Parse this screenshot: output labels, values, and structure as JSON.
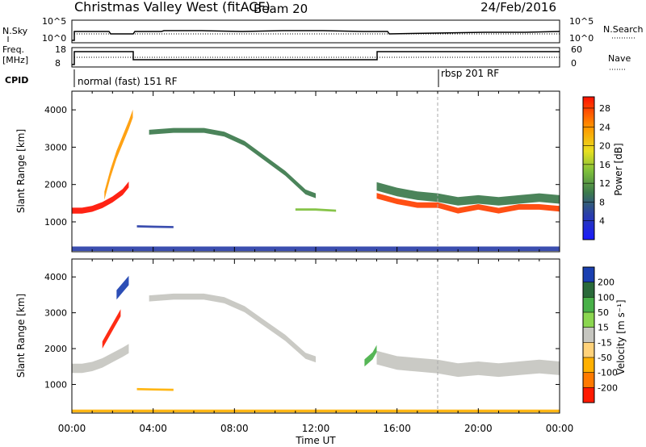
{
  "header": {
    "title": "Christmas Valley West (fitACF)",
    "beam": "Beam 20",
    "date": "24/Feb/2016"
  },
  "strips": {
    "nsky_label": "N.Sky",
    "nsky_ticks": [
      "10^5",
      "10^0"
    ],
    "nsearch_label": "N.Search",
    "nsearch_ticks": [
      "10^5",
      "10^0"
    ],
    "freq_label": "Freq.",
    "freq_unit": "[MHz]",
    "freq_ticks": [
      "18",
      "8"
    ],
    "nave_label": "Nave",
    "nave_ticks": [
      "60",
      "0"
    ],
    "cpid_label": "CPID",
    "cpid_modes": [
      {
        "label": "normal (fast) 151 RF",
        "start_hour": 0
      },
      {
        "label": "rbsp 201 RF",
        "start_hour": 18
      }
    ]
  },
  "chart_data": [
    {
      "type": "heatmap",
      "panel": "power",
      "ylabel": "Slant Range [km]",
      "xlabel": "",
      "y_ticks": [
        1000,
        2000,
        3000,
        4000
      ],
      "ylim": [
        200,
        4500
      ],
      "colorbar": {
        "label": "Power [dB]",
        "ticks": [
          "4",
          "8",
          "12",
          "16",
          "20",
          "24",
          "28"
        ]
      },
      "bands": [
        {
          "x": [
            0.0,
            0.5,
            1.0,
            1.5,
            2.0,
            2.5,
            2.8
          ],
          "y": [
            1300,
            1300,
            1350,
            1450,
            1600,
            1800,
            2000
          ],
          "width": 160,
          "value": 28
        },
        {
          "x": [
            1.6,
            1.9,
            2.2,
            2.5,
            2.8,
            3.0
          ],
          "y": [
            1700,
            2300,
            2800,
            3200,
            3600,
            3900
          ],
          "width": 220,
          "value": 24
        },
        {
          "x": [
            3.8,
            5.0,
            6.5,
            7.5,
            8.5,
            9.5,
            10.5,
            11.5,
            12.0
          ],
          "y": [
            3400,
            3450,
            3450,
            3350,
            3100,
            2700,
            2300,
            1800,
            1700
          ],
          "width": 130,
          "value": 10
        },
        {
          "x": [
            15.0,
            16.0,
            17.0,
            18.0,
            19.0,
            20.0,
            21.0,
            22.0,
            23.0,
            24.0
          ],
          "y": [
            1700,
            1550,
            1450,
            1450,
            1300,
            1400,
            1300,
            1400,
            1400,
            1350
          ],
          "width": 150,
          "value": 26
        },
        {
          "x": [
            15.0,
            16.0,
            17.0,
            18.0,
            19.0,
            20.0,
            21.0,
            22.0,
            23.0,
            24.0
          ],
          "y": [
            1950,
            1800,
            1700,
            1650,
            1550,
            1600,
            1550,
            1600,
            1650,
            1600
          ],
          "width": 230,
          "value": 11
        },
        {
          "x": [
            11.0,
            12.0,
            13.0
          ],
          "y": [
            1330,
            1330,
            1300
          ],
          "width": 60,
          "value": 14
        },
        {
          "x": [
            3.2,
            4.0,
            5.0
          ],
          "y": [
            880,
            870,
            860
          ],
          "width": 60,
          "value": 7
        },
        {
          "x": [
            0.0,
            6.0,
            12.0,
            18.0,
            24.0
          ],
          "y": [
            280,
            280,
            280,
            280,
            280
          ],
          "width": 120,
          "value": 8
        }
      ],
      "overlays": [
        {
          "type": "vertical-dashed",
          "x_hour": 18
        }
      ]
    },
    {
      "type": "heatmap",
      "panel": "velocity",
      "ylabel": "Slant Range [km]",
      "xlabel": "Time UT",
      "x_ticks": [
        "00:00",
        "04:00",
        "08:00",
        "12:00",
        "16:00",
        "20:00",
        "00:00"
      ],
      "y_ticks": [
        1000,
        2000,
        3000,
        4000
      ],
      "ylim": [
        200,
        4500
      ],
      "colorbar": {
        "label": "Velocity [m s⁻¹]",
        "ticks": [
          "-200",
          "-100",
          "-50",
          "-15",
          "15",
          "50",
          "100",
          "200"
        ]
      },
      "bands": [
        {
          "x": [
            0.0,
            0.5,
            1.0,
            1.5,
            2.0,
            2.5,
            2.8
          ],
          "y": [
            1450,
            1450,
            1500,
            1600,
            1750,
            1900,
            2000
          ],
          "width": 260,
          "value": 0
        },
        {
          "x": [
            1.5,
            1.8,
            2.1,
            2.4
          ],
          "y": [
            2100,
            2400,
            2700,
            3000
          ],
          "width": 200,
          "value": -180
        },
        {
          "x": [
            2.2,
            2.5,
            2.8
          ],
          "y": [
            3500,
            3700,
            3900
          ],
          "width": 260,
          "value": 210
        },
        {
          "x": [
            3.8,
            5.0,
            6.5,
            7.5,
            8.5,
            9.5,
            10.5,
            11.5,
            12.0
          ],
          "y": [
            3400,
            3450,
            3450,
            3350,
            3100,
            2700,
            2300,
            1800,
            1700
          ],
          "width": 170,
          "value": 0
        },
        {
          "x": [
            15.0,
            16.0,
            17.0,
            18.0,
            19.0,
            20.0,
            21.0,
            22.0,
            23.0,
            24.0
          ],
          "y": [
            1750,
            1600,
            1550,
            1500,
            1400,
            1450,
            1400,
            1450,
            1500,
            1450
          ],
          "width": 380,
          "value": 0
        },
        {
          "x": [
            14.4,
            14.8,
            15.0
          ],
          "y": [
            1600,
            1800,
            2000
          ],
          "width": 200,
          "value": 60
        },
        {
          "x": [
            3.2,
            4.0,
            5.0
          ],
          "y": [
            870,
            860,
            850
          ],
          "width": 60,
          "value": -40
        },
        {
          "x": [
            0.0,
            6.0,
            12.0,
            18.0,
            24.0
          ],
          "y": [
            260,
            260,
            260,
            260,
            260
          ],
          "width": 80,
          "value": -30
        }
      ],
      "overlays": [
        {
          "type": "vertical-dashed",
          "x_hour": 18
        }
      ]
    }
  ]
}
